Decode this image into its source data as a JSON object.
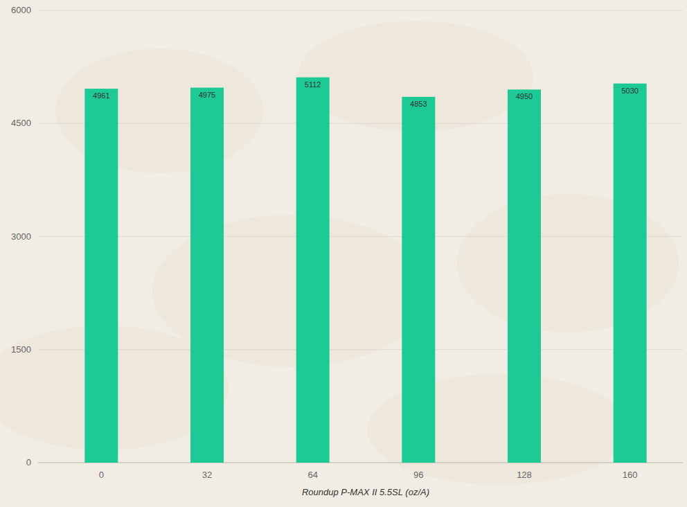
{
  "chart_data": {
    "type": "bar",
    "x_label": "Roundup P-MAX II 5.5SL (oz/A)",
    "categories": [
      "0",
      "32",
      "64",
      "96",
      "128",
      "160"
    ],
    "values": [
      4961,
      4975,
      5112,
      4853,
      4950,
      5030
    ],
    "color": "#1dc995",
    "ylim": [
      0,
      6000
    ],
    "yticks": [
      0,
      1500,
      3000,
      4500,
      6000
    ],
    "grid": true,
    "data_labels": true
  }
}
